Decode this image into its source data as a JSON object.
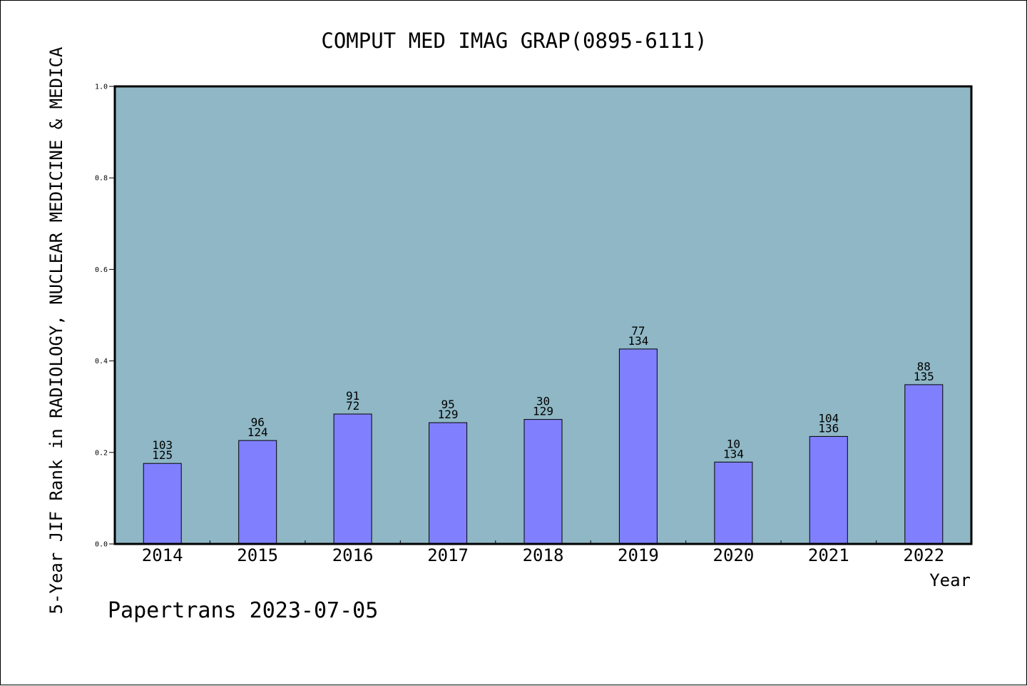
{
  "chart_data": {
    "type": "bar",
    "title": "COMPUT MED IMAG GRAP(0895-6111)",
    "ylabel": "5-Year JIF Rank in RADIOLOGY, NUCLEAR MEDICINE & MEDICA",
    "xlabel": "Year",
    "categories": [
      "2014",
      "2015",
      "2016",
      "2017",
      "2018",
      "2019",
      "2020",
      "2021",
      "2022"
    ],
    "values": [
      0.176,
      0.226,
      0.284,
      0.265,
      0.272,
      0.426,
      0.179,
      0.235,
      0.348
    ],
    "labels_top": [
      "103",
      "96",
      "91",
      "95",
      "30",
      "77",
      "10",
      "104",
      "88"
    ],
    "labels_bottom": [
      "125",
      "124",
      "72",
      "129",
      "129",
      "134",
      "134",
      "136",
      "135"
    ],
    "ylim": [
      0,
      1
    ],
    "yticks": [
      "0.0",
      "0.2",
      "0.4",
      "0.6",
      "0.8",
      "1.0"
    ],
    "grid": false,
    "colors": {
      "plot_bg": "#8fb7c5",
      "bar": "#8080ff",
      "bar_edge": "#000000"
    }
  },
  "footer": "Papertrans 2023-07-05"
}
